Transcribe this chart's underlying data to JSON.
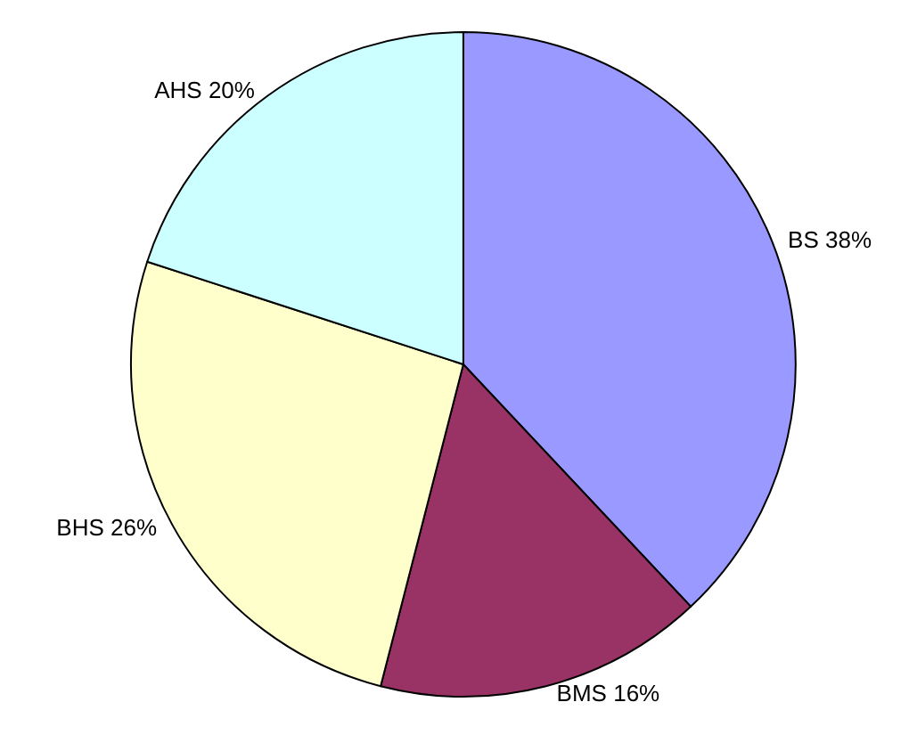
{
  "chart_data": {
    "type": "pie",
    "categories": [
      "BS",
      "BMS",
      "BHS",
      "AHS"
    ],
    "values": [
      38,
      16,
      26,
      20
    ],
    "colors": [
      "#9999ff",
      "#993366",
      "#ffffcc",
      "#ccffff"
    ],
    "value_labels": [
      "38%",
      "16%",
      "26%",
      "20%"
    ]
  }
}
